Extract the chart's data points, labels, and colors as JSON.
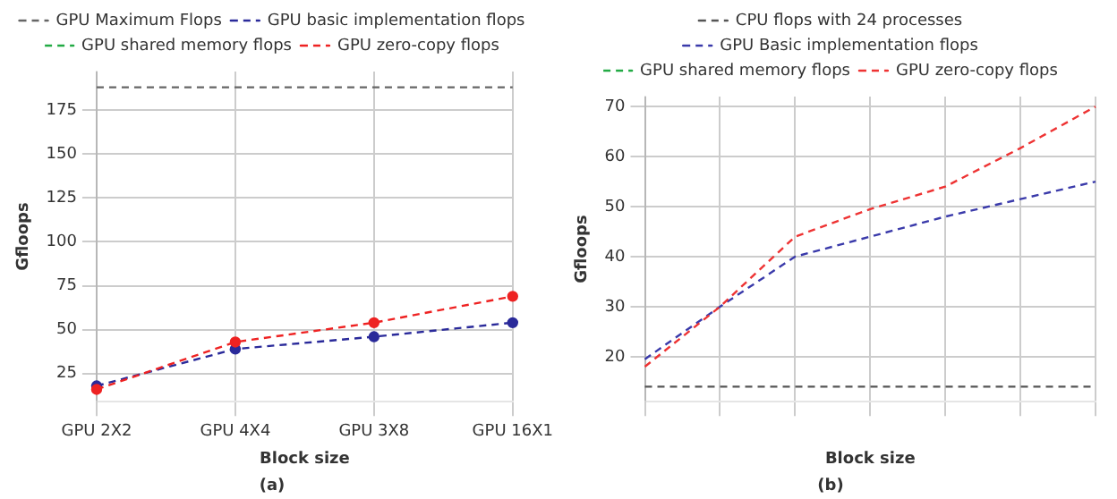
{
  "chart_data": [
    {
      "type": "line",
      "title": "(a)",
      "xlabel": "Block size",
      "ylabel": "Gfloops",
      "categories": [
        "GPU 2X2",
        "GPU 4X4",
        "GPU 3X8",
        "GPU 16X1"
      ],
      "series": [
        {
          "name": "GPU Maximum Flops",
          "color": "#666666",
          "marker": "none",
          "values": [
            188,
            188,
            188,
            188
          ]
        },
        {
          "name": "GPU basic implementation flops",
          "color": "#2a2a9a",
          "marker": "circle",
          "values": [
            18,
            39,
            46,
            54
          ]
        },
        {
          "name": "GPU shared memory flops",
          "color": "#22aa44",
          "marker": "circle",
          "values": [
            null,
            null,
            null,
            null
          ]
        },
        {
          "name": "GPU zero-copy flops",
          "color": "#ee2222",
          "marker": "circle",
          "values": [
            16,
            43,
            54,
            69
          ]
        }
      ],
      "ylim": [
        9,
        197
      ],
      "yticks": [
        25,
        50,
        75,
        100,
        125,
        150,
        175
      ],
      "grid": true,
      "legend": "top",
      "line_style": "dashed"
    },
    {
      "type": "line",
      "title": "(b)",
      "xlabel": "Block size",
      "ylabel": "Gfloops",
      "categories": [
        null,
        null,
        null,
        null,
        null,
        null,
        null
      ],
      "series": [
        {
          "name": "CPU flops with 24 processes",
          "color": "#555555",
          "values": [
            14,
            14,
            14,
            14,
            14,
            14,
            14
          ]
        },
        {
          "name": "GPU Basic implementation flops",
          "color": "#3a3aaa",
          "values": [
            19.5,
            30,
            40,
            44,
            48,
            51.5,
            55
          ]
        },
        {
          "name": "GPU shared memory flops",
          "color": "#22aa44",
          "values": [
            null,
            null,
            null,
            null,
            null,
            null,
            null
          ]
        },
        {
          "name": "GPU zero-copy flops",
          "color": "#ee3333",
          "values": [
            18,
            30,
            44,
            49.5,
            54,
            61.7,
            70
          ]
        }
      ],
      "ylim": [
        11,
        72
      ],
      "yticks": [
        20,
        30,
        40,
        50,
        60,
        70
      ],
      "grid": true,
      "legend": "top",
      "marker": "none",
      "line_style": "dashed"
    }
  ]
}
